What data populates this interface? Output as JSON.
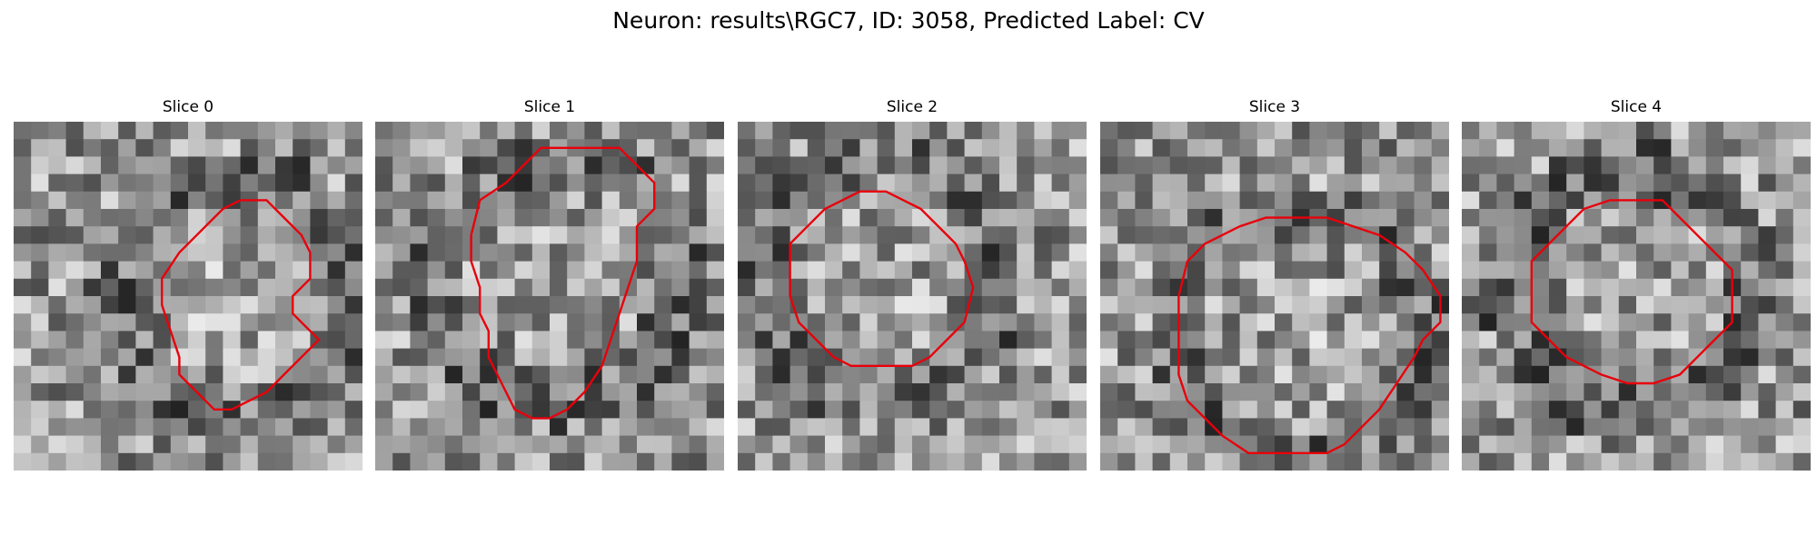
{
  "figure": {
    "title": "Neuron: results\\RGC7, ID: 3058, Predicted Label: CV",
    "contour_color": "#e8000b",
    "panels": [
      {
        "title": "Slice 0",
        "seed": 11,
        "contour": [
          [
            17.0,
            9.0
          ],
          [
            16.0,
            10.0
          ],
          [
            16.0,
            11.0
          ],
          [
            17.5,
            12.5
          ],
          [
            15.5,
            14.5
          ],
          [
            14.5,
            15.5
          ],
          [
            12.5,
            16.5
          ],
          [
            11.5,
            16.5
          ],
          [
            10.5,
            15.5
          ],
          [
            9.5,
            14.5
          ],
          [
            9.5,
            13.5
          ],
          [
            9.0,
            12.0
          ],
          [
            8.5,
            10.5
          ],
          [
            8.5,
            9.0
          ],
          [
            9.5,
            7.5
          ],
          [
            10.5,
            6.5
          ],
          [
            11.0,
            6.0
          ],
          [
            12.0,
            5.0
          ],
          [
            13.0,
            4.5
          ],
          [
            14.5,
            4.5
          ],
          [
            15.5,
            5.5
          ],
          [
            16.5,
            6.5
          ],
          [
            17.0,
            7.5
          ]
        ]
      },
      {
        "title": "Slice 1",
        "seed": 23,
        "contour": [
          [
            16.0,
            5.0
          ],
          [
            15.0,
            6.0
          ],
          [
            15.0,
            8.0
          ],
          [
            14.5,
            9.5
          ],
          [
            14.0,
            11.0
          ],
          [
            13.5,
            12.5
          ],
          [
            13.0,
            14.0
          ],
          [
            12.0,
            15.5
          ],
          [
            11.0,
            16.5
          ],
          [
            10.0,
            17.0
          ],
          [
            9.0,
            17.0
          ],
          [
            8.0,
            16.5
          ],
          [
            7.5,
            15.5
          ],
          [
            7.0,
            14.5
          ],
          [
            6.5,
            13.5
          ],
          [
            6.5,
            12.0
          ],
          [
            6.0,
            11.0
          ],
          [
            6.0,
            9.5
          ],
          [
            5.5,
            8.0
          ],
          [
            5.5,
            6.5
          ],
          [
            6.0,
            4.5
          ],
          [
            7.5,
            3.5
          ],
          [
            8.5,
            2.5
          ],
          [
            9.5,
            1.5
          ],
          [
            11.0,
            1.5
          ],
          [
            12.5,
            1.5
          ],
          [
            14.0,
            1.5
          ],
          [
            15.0,
            2.5
          ],
          [
            16.0,
            3.5
          ]
        ]
      },
      {
        "title": "Slice 2",
        "seed": 37,
        "contour": [
          [
            13.5,
            9.5
          ],
          [
            13.0,
            11.5
          ],
          [
            12.0,
            12.5
          ],
          [
            11.0,
            13.5
          ],
          [
            10.0,
            14.0
          ],
          [
            8.0,
            14.0
          ],
          [
            6.5,
            14.0
          ],
          [
            5.5,
            13.5
          ],
          [
            4.5,
            12.5
          ],
          [
            3.5,
            11.5
          ],
          [
            3.0,
            10.0
          ],
          [
            3.0,
            8.5
          ],
          [
            3.0,
            7.0
          ],
          [
            4.0,
            6.0
          ],
          [
            5.0,
            5.0
          ],
          [
            6.0,
            4.5
          ],
          [
            7.0,
            4.0
          ],
          [
            8.5,
            4.0
          ],
          [
            9.5,
            4.5
          ],
          [
            10.5,
            5.0
          ],
          [
            11.5,
            6.0
          ],
          [
            12.5,
            7.0
          ],
          [
            13.0,
            8.0
          ]
        ]
      },
      {
        "title": "Slice 3",
        "seed": 53,
        "contour": [
          [
            19.5,
            11.5
          ],
          [
            18.5,
            12.5
          ],
          [
            18.0,
            13.5
          ],
          [
            17.0,
            15.0
          ],
          [
            16.0,
            16.5
          ],
          [
            15.0,
            17.5
          ],
          [
            14.0,
            18.5
          ],
          [
            13.0,
            19.0
          ],
          [
            11.5,
            19.0
          ],
          [
            10.0,
            19.0
          ],
          [
            8.5,
            19.0
          ],
          [
            7.0,
            18.0
          ],
          [
            6.0,
            17.0
          ],
          [
            5.0,
            16.0
          ],
          [
            4.5,
            14.5
          ],
          [
            4.5,
            12.5
          ],
          [
            4.5,
            10.0
          ],
          [
            5.0,
            8.0
          ],
          [
            6.0,
            7.0
          ],
          [
            7.0,
            6.5
          ],
          [
            8.0,
            6.0
          ],
          [
            9.5,
            5.5
          ],
          [
            11.0,
            5.5
          ],
          [
            13.0,
            5.5
          ],
          [
            14.5,
            6.0
          ],
          [
            16.0,
            6.5
          ],
          [
            17.5,
            7.5
          ],
          [
            18.5,
            8.5
          ],
          [
            19.5,
            10.0
          ]
        ]
      },
      {
        "title": "Slice 4",
        "seed": 71,
        "contour": [
          [
            15.5,
            11.5
          ],
          [
            14.5,
            12.5
          ],
          [
            13.5,
            13.5
          ],
          [
            12.5,
            14.5
          ],
          [
            11.0,
            15.0
          ],
          [
            9.5,
            15.0
          ],
          [
            8.0,
            14.5
          ],
          [
            7.0,
            14.0
          ],
          [
            6.0,
            13.5
          ],
          [
            5.0,
            12.5
          ],
          [
            4.0,
            11.5
          ],
          [
            4.0,
            9.5
          ],
          [
            4.0,
            8.0
          ],
          [
            5.0,
            7.0
          ],
          [
            6.0,
            6.0
          ],
          [
            7.0,
            5.0
          ],
          [
            8.5,
            4.5
          ],
          [
            10.0,
            4.5
          ],
          [
            11.5,
            4.5
          ],
          [
            12.5,
            5.5
          ],
          [
            13.5,
            6.5
          ],
          [
            14.5,
            7.5
          ],
          [
            15.5,
            8.5
          ],
          [
            15.5,
            10.0
          ]
        ]
      }
    ]
  }
}
